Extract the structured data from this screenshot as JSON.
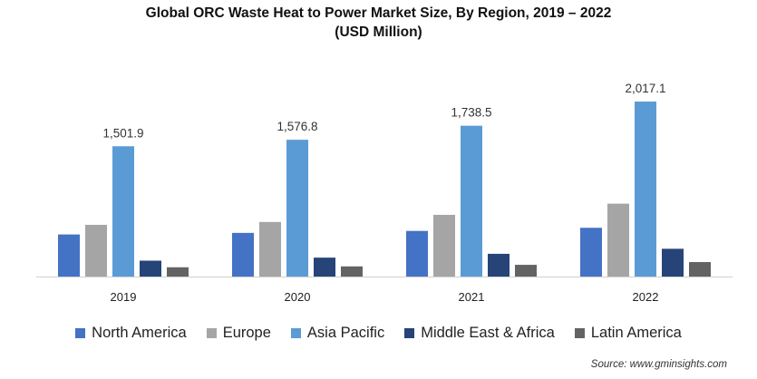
{
  "chart_data": {
    "type": "bar",
    "title": "Global ORC Waste Heat to Power Market Size, By Region, 2019 – 2022",
    "subtitle": "(USD Million)",
    "categories": [
      "2019",
      "2020",
      "2021",
      "2022"
    ],
    "series": [
      {
        "name": "North America",
        "color": "#4472c4",
        "values": [
          485,
          503,
          526,
          562
        ]
      },
      {
        "name": "Europe",
        "color": "#a5a5a5",
        "values": [
          596,
          629,
          711,
          840
        ]
      },
      {
        "name": "Asia Pacific",
        "color": "#5b9bd5",
        "values": [
          1501.9,
          1576.8,
          1738.5,
          2017.1
        ]
      },
      {
        "name": "Middle East & Africa",
        "color": "#264478",
        "values": [
          183,
          218,
          262,
          320
        ]
      },
      {
        "name": "Latin America",
        "color": "#636363",
        "values": [
          107,
          117,
          135,
          167
        ]
      }
    ],
    "data_labels": {
      "series": "Asia Pacific",
      "text": [
        "1,501.9",
        "1,576.8",
        "1,738.5",
        "2,017.1"
      ]
    },
    "ylim": [
      0,
      2017.1
    ],
    "grid": false,
    "legend": "bottom",
    "source": "Source: www.gminsights.com"
  }
}
